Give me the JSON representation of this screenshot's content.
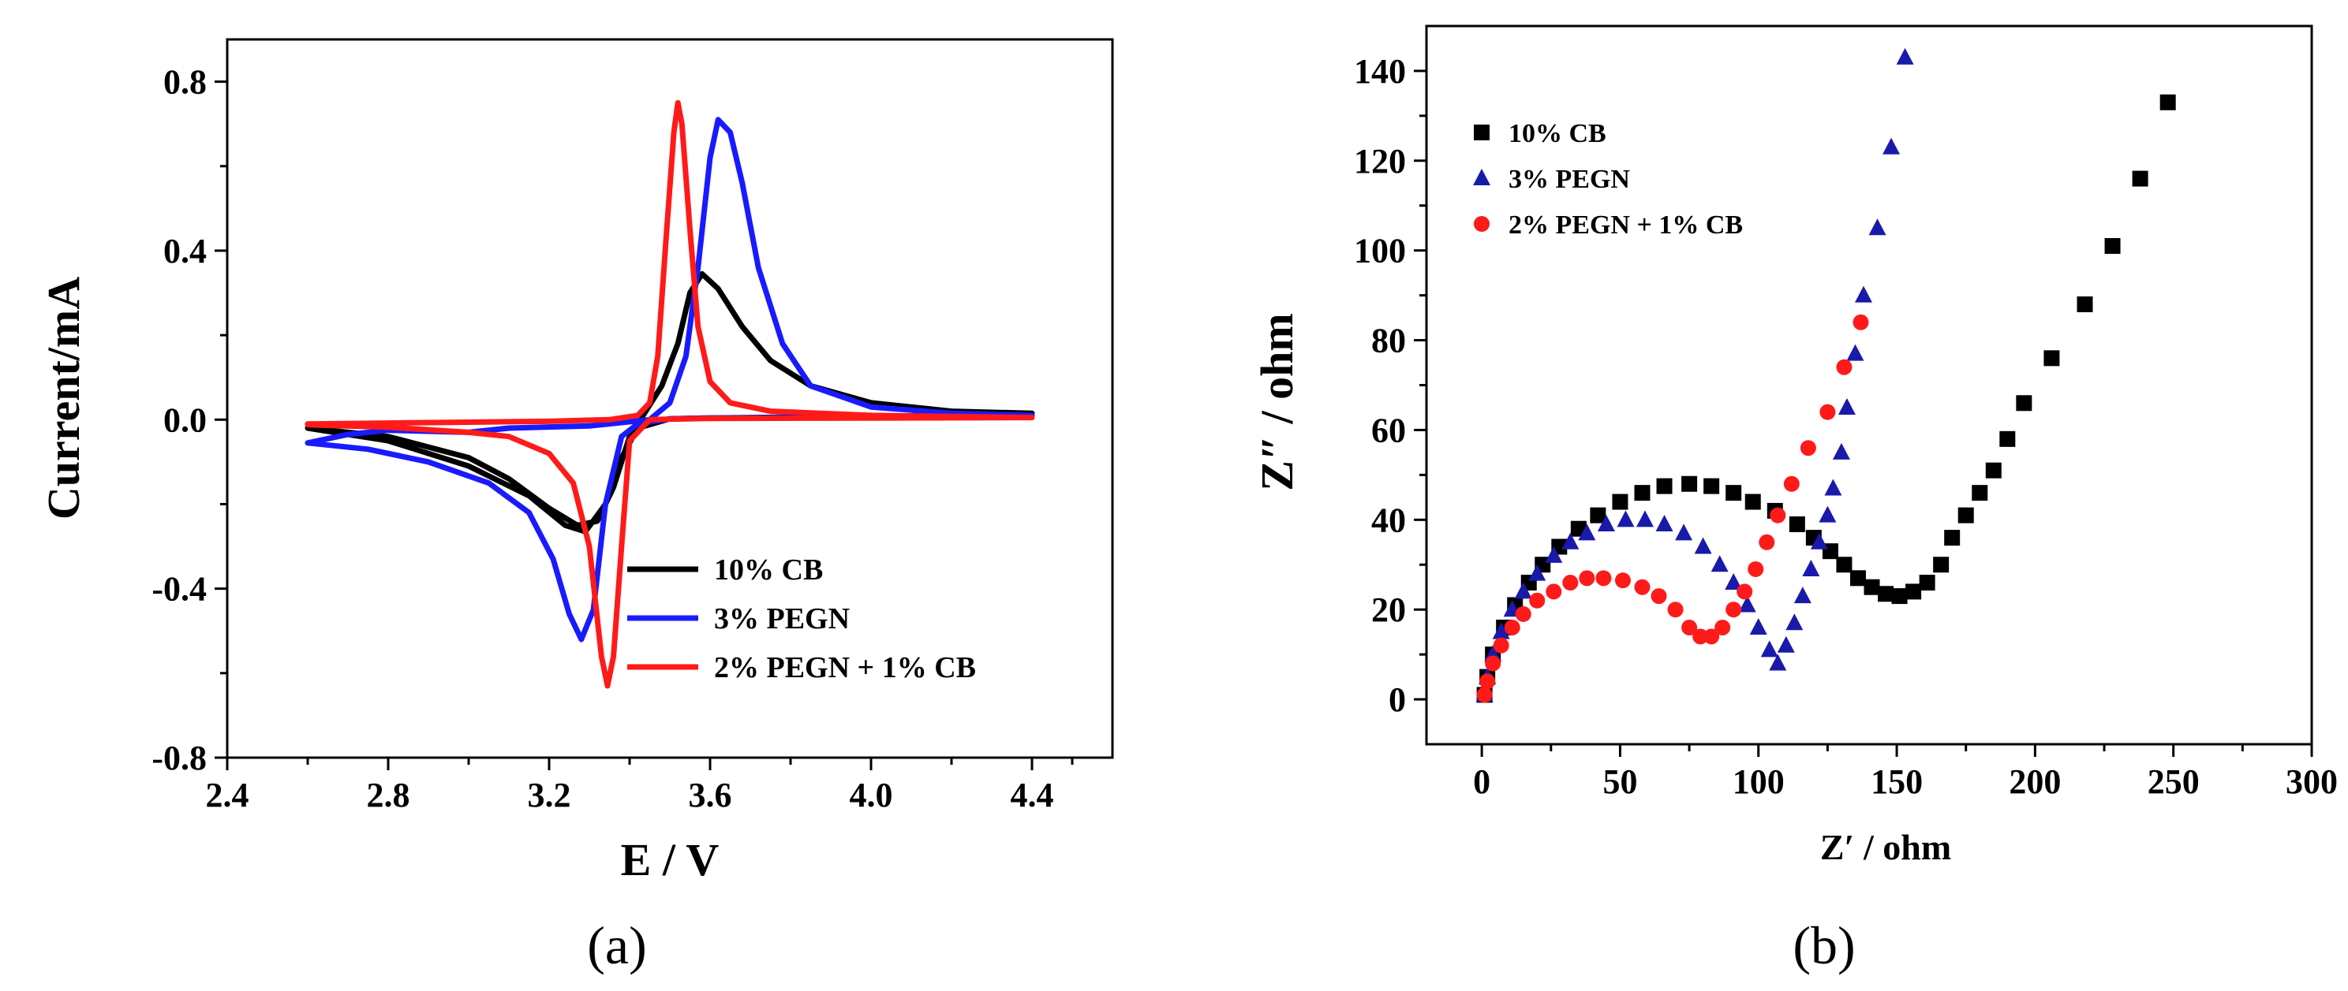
{
  "chart_data": [
    {
      "type": "line",
      "panel": "(a)",
      "xlabel": "E / V",
      "ylabel": "Current/mA",
      "xlim": [
        2.4,
        4.6
      ],
      "ylim": [
        -0.8,
        0.9
      ],
      "xticks": [
        2.4,
        2.8,
        3.2,
        3.6,
        4.0,
        4.4
      ],
      "xtick_labels": [
        "2.4",
        "2.8",
        "3.2",
        "3.6",
        "4.0",
        "4.4"
      ],
      "yticks": [
        -0.8,
        -0.4,
        0.0,
        0.4,
        0.8
      ],
      "ytick_labels": [
        "-0.8",
        "-0.4",
        "0.0",
        "0.4",
        "0.8"
      ],
      "legend_position": "bottom-right",
      "series": [
        {
          "name": "10% CB",
          "color": "#000000",
          "forward": [
            [
              2.6,
              -0.02
            ],
            [
              2.8,
              -0.04
            ],
            [
              3.0,
              -0.09
            ],
            [
              3.1,
              -0.14
            ],
            [
              3.2,
              -0.21
            ],
            [
              3.27,
              -0.25
            ],
            [
              3.32,
              -0.24
            ],
            [
              3.36,
              -0.16
            ],
            [
              3.4,
              -0.04
            ],
            [
              3.44,
              0.02
            ],
            [
              3.48,
              0.08
            ],
            [
              3.52,
              0.18
            ],
            [
              3.55,
              0.3
            ],
            [
              3.58,
              0.345
            ],
            [
              3.62,
              0.31
            ],
            [
              3.68,
              0.22
            ],
            [
              3.75,
              0.14
            ],
            [
              3.85,
              0.08
            ],
            [
              4.0,
              0.04
            ],
            [
              4.2,
              0.02
            ],
            [
              4.4,
              0.015
            ]
          ],
          "reverse": [
            [
              4.4,
              0.015
            ],
            [
              4.2,
              0.01
            ],
            [
              4.0,
              0.008
            ],
            [
              3.8,
              0.006
            ],
            [
              3.6,
              0.004
            ],
            [
              3.5,
              0.002
            ],
            [
              3.42,
              -0.02
            ],
            [
              3.38,
              -0.09
            ],
            [
              3.34,
              -0.2
            ],
            [
              3.29,
              -0.265
            ],
            [
              3.24,
              -0.25
            ],
            [
              3.15,
              -0.18
            ],
            [
              3.0,
              -0.11
            ],
            [
              2.8,
              -0.05
            ],
            [
              2.6,
              -0.02
            ]
          ]
        },
        {
          "name": "3% PEGN",
          "color": "#1a1aff",
          "forward": [
            [
              2.6,
              -0.055
            ],
            [
              2.7,
              -0.035
            ],
            [
              2.8,
              -0.025
            ],
            [
              3.0,
              -0.03
            ],
            [
              3.1,
              -0.02
            ],
            [
              3.3,
              -0.015
            ],
            [
              3.45,
              0.0
            ],
            [
              3.5,
              0.04
            ],
            [
              3.54,
              0.15
            ],
            [
              3.57,
              0.36
            ],
            [
              3.6,
              0.62
            ],
            [
              3.62,
              0.71
            ],
            [
              3.65,
              0.68
            ],
            [
              3.68,
              0.56
            ],
            [
              3.72,
              0.36
            ],
            [
              3.78,
              0.18
            ],
            [
              3.85,
              0.08
            ],
            [
              4.0,
              0.03
            ],
            [
              4.2,
              0.015
            ],
            [
              4.4,
              0.01
            ]
          ],
          "reverse": [
            [
              4.4,
              0.01
            ],
            [
              4.2,
              0.008
            ],
            [
              4.0,
              0.006
            ],
            [
              3.8,
              0.005
            ],
            [
              3.6,
              0.004
            ],
            [
              3.5,
              0.002
            ],
            [
              3.42,
              -0.01
            ],
            [
              3.38,
              -0.04
            ],
            [
              3.34,
              -0.2
            ],
            [
              3.31,
              -0.45
            ],
            [
              3.28,
              -0.52
            ],
            [
              3.25,
              -0.46
            ],
            [
              3.21,
              -0.33
            ],
            [
              3.15,
              -0.22
            ],
            [
              3.05,
              -0.15
            ],
            [
              2.9,
              -0.1
            ],
            [
              2.75,
              -0.07
            ],
            [
              2.6,
              -0.055
            ]
          ]
        },
        {
          "name": "2% PEGN + 1% CB",
          "color": "#ff1a1a",
          "forward": [
            [
              2.6,
              -0.01
            ],
            [
              2.8,
              -0.008
            ],
            [
              3.0,
              -0.006
            ],
            [
              3.2,
              -0.004
            ],
            [
              3.35,
              0.0
            ],
            [
              3.42,
              0.01
            ],
            [
              3.45,
              0.04
            ],
            [
              3.47,
              0.15
            ],
            [
              3.49,
              0.42
            ],
            [
              3.51,
              0.68
            ],
            [
              3.52,
              0.75
            ],
            [
              3.53,
              0.7
            ],
            [
              3.55,
              0.45
            ],
            [
              3.57,
              0.22
            ],
            [
              3.6,
              0.09
            ],
            [
              3.65,
              0.04
            ],
            [
              3.75,
              0.02
            ],
            [
              4.0,
              0.01
            ],
            [
              4.4,
              0.005
            ]
          ],
          "reverse": [
            [
              4.4,
              0.005
            ],
            [
              4.0,
              0.004
            ],
            [
              3.6,
              0.003
            ],
            [
              3.45,
              0.0
            ],
            [
              3.4,
              -0.05
            ],
            [
              3.38,
              -0.3
            ],
            [
              3.36,
              -0.56
            ],
            [
              3.345,
              -0.63
            ],
            [
              3.33,
              -0.56
            ],
            [
              3.3,
              -0.3
            ],
            [
              3.26,
              -0.15
            ],
            [
              3.2,
              -0.08
            ],
            [
              3.1,
              -0.04
            ],
            [
              3.0,
              -0.03
            ],
            [
              2.8,
              -0.018
            ],
            [
              2.6,
              -0.012
            ]
          ]
        }
      ]
    },
    {
      "type": "scatter",
      "panel": "(b)",
      "xlabel": "Z′ / ohm",
      "ylabel": "Z″ / ohm",
      "xlim": [
        -20,
        300
      ],
      "ylim": [
        -10,
        150
      ],
      "xticks": [
        0,
        50,
        100,
        150,
        200,
        250,
        300
      ],
      "xtick_labels": [
        "0",
        "50",
        "100",
        "150",
        "200",
        "250",
        "300"
      ],
      "yticks": [
        0,
        20,
        40,
        60,
        80,
        100,
        120,
        140
      ],
      "ytick_labels": [
        "0",
        "20",
        "40",
        "60",
        "80",
        "100",
        "120",
        "140"
      ],
      "legend_position": "top-left",
      "series": [
        {
          "name": "10% CB",
          "marker": "square",
          "color": "#000000",
          "points": [
            [
              1,
              1
            ],
            [
              2,
              5
            ],
            [
              4,
              10
            ],
            [
              8,
              16
            ],
            [
              12,
              21
            ],
            [
              17,
              26
            ],
            [
              22,
              30
            ],
            [
              28,
              34
            ],
            [
              35,
              38
            ],
            [
              42,
              41
            ],
            [
              50,
              44
            ],
            [
              58,
              46
            ],
            [
              66,
              47.5
            ],
            [
              75,
              48
            ],
            [
              83,
              47.5
            ],
            [
              91,
              46
            ],
            [
              98,
              44
            ],
            [
              106,
              42
            ],
            [
              114,
              39
            ],
            [
              120,
              36
            ],
            [
              126,
              33
            ],
            [
              131,
              30
            ],
            [
              136,
              27
            ],
            [
              141,
              25
            ],
            [
              146,
              23.5
            ],
            [
              151,
              23
            ],
            [
              156,
              24
            ],
            [
              161,
              26
            ],
            [
              166,
              30
            ],
            [
              170,
              36
            ],
            [
              175,
              41
            ],
            [
              180,
              46
            ],
            [
              185,
              51
            ],
            [
              190,
              58
            ],
            [
              196,
              66
            ],
            [
              206,
              76
            ],
            [
              218,
              88
            ],
            [
              228,
              101
            ],
            [
              238,
              116
            ],
            [
              248,
              133
            ]
          ]
        },
        {
          "name": "3% PEGN",
          "marker": "triangle",
          "color": "#1a1aaa",
          "points": [
            [
              1,
              1
            ],
            [
              2,
              5
            ],
            [
              4,
              10
            ],
            [
              7,
              15
            ],
            [
              11,
              20
            ],
            [
              15,
              24
            ],
            [
              20,
              28
            ],
            [
              26,
              32
            ],
            [
              32,
              35
            ],
            [
              38,
              37
            ],
            [
              45,
              39
            ],
            [
              52,
              40
            ],
            [
              59,
              40
            ],
            [
              66,
              39
            ],
            [
              73,
              37
            ],
            [
              80,
              34
            ],
            [
              86,
              30
            ],
            [
              91,
              26
            ],
            [
              96,
              21
            ],
            [
              100,
              16
            ],
            [
              104,
              11
            ],
            [
              107,
              8
            ],
            [
              110,
              12
            ],
            [
              113,
              17
            ],
            [
              116,
              23
            ],
            [
              119,
              29
            ],
            [
              122,
              35
            ],
            [
              125,
              41
            ],
            [
              127,
              47
            ],
            [
              130,
              55
            ],
            [
              132,
              65
            ],
            [
              135,
              77
            ],
            [
              138,
              90
            ],
            [
              143,
              105
            ],
            [
              148,
              123
            ],
            [
              153,
              143
            ]
          ]
        },
        {
          "name": "2% PEGN + 1% CB",
          "marker": "circle",
          "color": "#ff1a1a",
          "points": [
            [
              1,
              1
            ],
            [
              2,
              4
            ],
            [
              4,
              8
            ],
            [
              7,
              12
            ],
            [
              11,
              16
            ],
            [
              15,
              19
            ],
            [
              20,
              22
            ],
            [
              26,
              24
            ],
            [
              32,
              26
            ],
            [
              38,
              27
            ],
            [
              44,
              27
            ],
            [
              51,
              26.5
            ],
            [
              58,
              25
            ],
            [
              64,
              23
            ],
            [
              70,
              20
            ],
            [
              75,
              16
            ],
            [
              79,
              14
            ],
            [
              83,
              14
            ],
            [
              87,
              16
            ],
            [
              91,
              20
            ],
            [
              95,
              24
            ],
            [
              99,
              29
            ],
            [
              103,
              35
            ],
            [
              107,
              41
            ],
            [
              112,
              48
            ],
            [
              118,
              56
            ],
            [
              125,
              64
            ],
            [
              131,
              74
            ],
            [
              137,
              84
            ]
          ]
        }
      ]
    }
  ],
  "labels": {
    "panel_a": "(a)",
    "panel_b": "(b)"
  }
}
